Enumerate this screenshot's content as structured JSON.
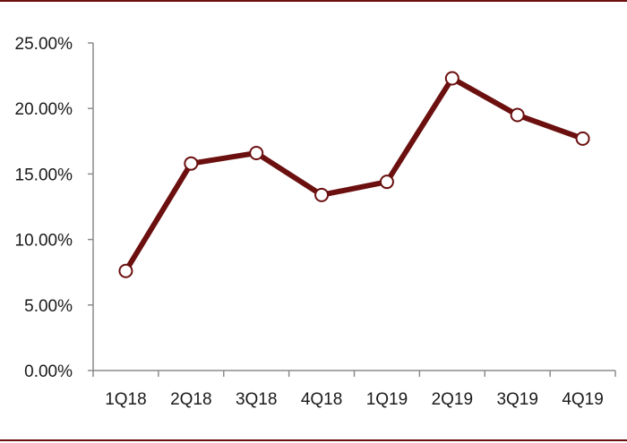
{
  "chart_data": {
    "type": "line",
    "categories": [
      "1Q18",
      "2Q18",
      "3Q18",
      "4Q18",
      "1Q19",
      "2Q19",
      "3Q19",
      "4Q19"
    ],
    "series": [
      {
        "values": [
          7.6,
          15.8,
          16.6,
          13.4,
          14.4,
          22.3,
          19.5,
          17.7
        ]
      }
    ],
    "ylim": [
      0,
      25
    ],
    "yticks": [
      0,
      5,
      10,
      15,
      20,
      25
    ],
    "ytick_labels": [
      "0.00%",
      "5.00%",
      "10.00%",
      "15.00%",
      "20.00%",
      "25.00%"
    ],
    "ytick_format": "percent-2dp",
    "title": "",
    "xlabel": "",
    "ylabel": "",
    "grid": false,
    "legend": "none",
    "colors": {
      "line": "#6b0f0f",
      "marker_fill": "#ffffff",
      "marker_stroke": "#6b0f0f",
      "axis": "#8c8c8c",
      "frame_rule": "#6b0f0f",
      "text": "#1a1a1a"
    }
  }
}
